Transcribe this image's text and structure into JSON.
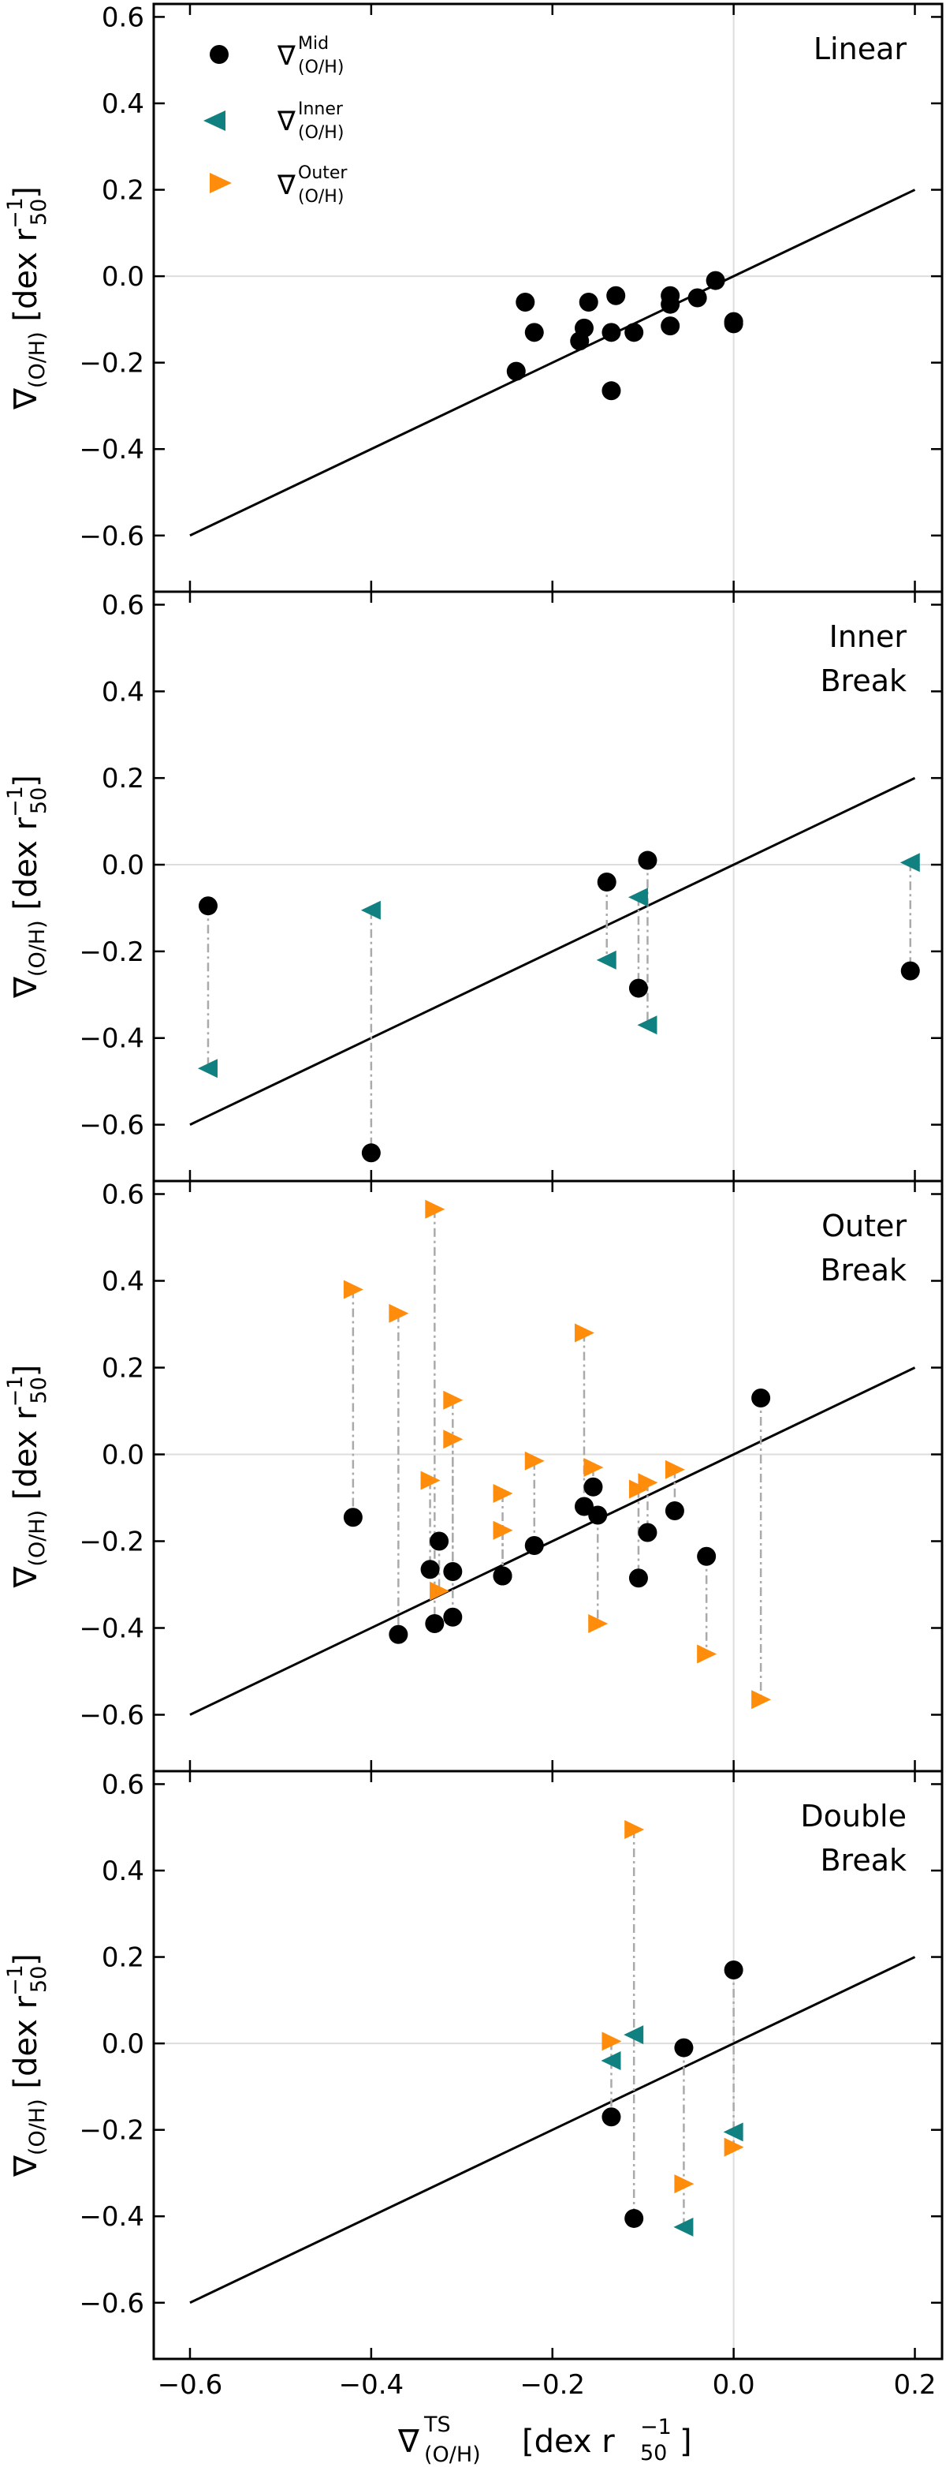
{
  "figure": {
    "xlabel_main": "∇",
    "xlabel_sup": "TS",
    "xlabel_sub": "(O/H)",
    "xlabel_unit": "[dex r",
    "xlabel_unit_sub": "50",
    "xlabel_unit_sup": "−1",
    "xlabel_close": "]",
    "ylabel_main": "∇",
    "ylabel_sub": "(O/H)",
    "ylabel_unit": "[dex r",
    "ylabel_unit_sub": "50",
    "ylabel_unit_sup": "−1",
    "ylabel_close": "]"
  },
  "legend": {
    "symbol": "∇",
    "sub": "(O/H)",
    "entries": [
      {
        "key": "mid",
        "sup": "Mid",
        "marker": "circle",
        "color": "#000000"
      },
      {
        "key": "inner",
        "sup": "Inner",
        "marker": "triangle-left",
        "color": "#118080"
      },
      {
        "key": "outer",
        "sup": "Outer",
        "marker": "triangle-right",
        "color": "#FF8C0A"
      }
    ]
  },
  "colors": {
    "mid": "#000000",
    "inner": "#118080",
    "outer": "#FF8C0A",
    "double_title": "#BBBBBB",
    "zero_line": "#DDDDDD",
    "connector": "#AAAAAA",
    "one_to_one": "#000000"
  },
  "chart_data": [
    {
      "type": "scatter",
      "panel": "Linear",
      "title_lines": [
        "Linear"
      ],
      "title_color": "#000000",
      "xlim": [
        -0.64,
        0.23
      ],
      "ylim": [
        -0.73,
        0.63
      ],
      "xticks": [
        -0.6,
        -0.4,
        -0.2,
        0.0,
        0.2
      ],
      "xticklabels": [
        "−0.6",
        "−0.4",
        "−0.2",
        "0.0",
        "0.2"
      ],
      "yticks": [
        -0.6,
        -0.4,
        -0.2,
        0.0,
        0.2,
        0.4,
        0.6
      ],
      "yticklabels": [
        "−0.6",
        "−0.4",
        "−0.2",
        "0.0",
        "0.2",
        "0.4",
        "0.6"
      ],
      "one_to_one": [
        [
          -0.6,
          -0.6
        ],
        [
          0.2,
          0.2
        ]
      ],
      "mid_points": [
        [
          -0.24,
          -0.22
        ],
        [
          -0.23,
          -0.06
        ],
        [
          -0.22,
          -0.13
        ],
        [
          -0.17,
          -0.15
        ],
        [
          -0.165,
          -0.12
        ],
        [
          -0.16,
          -0.06
        ],
        [
          -0.135,
          -0.13
        ],
        [
          -0.135,
          -0.265
        ],
        [
          -0.13,
          -0.045
        ],
        [
          -0.11,
          -0.13
        ],
        [
          -0.07,
          -0.045
        ],
        [
          -0.07,
          -0.065
        ],
        [
          -0.07,
          -0.115
        ],
        [
          -0.04,
          -0.05
        ],
        [
          -0.02,
          -0.01
        ],
        [
          0.0,
          -0.105
        ],
        [
          0.0,
          -0.11
        ]
      ],
      "pairs": []
    },
    {
      "type": "scatter",
      "panel": "Inner Break",
      "title_lines": [
        "Inner",
        "Break"
      ],
      "title_color": "#118080",
      "xlim": [
        -0.64,
        0.23
      ],
      "ylim": [
        -0.73,
        0.63
      ],
      "xticks": [
        -0.6,
        -0.4,
        -0.2,
        0.0,
        0.2
      ],
      "xticklabels": [
        "−0.6",
        "−0.4",
        "−0.2",
        "0.0",
        "0.2"
      ],
      "yticks": [
        -0.6,
        -0.4,
        -0.2,
        0.0,
        0.2,
        0.4,
        0.6
      ],
      "yticklabels": [
        "−0.6",
        "−0.4",
        "−0.2",
        "0.0",
        "0.2",
        "0.4",
        "0.6"
      ],
      "one_to_one": [
        [
          -0.6,
          -0.6
        ],
        [
          0.2,
          0.2
        ]
      ],
      "mid_points": [],
      "pairs": [
        {
          "x": -0.58,
          "mid": -0.095,
          "inner": -0.47
        },
        {
          "x": -0.4,
          "mid": -0.665,
          "inner": -0.105
        },
        {
          "x": -0.14,
          "mid": -0.04,
          "inner": -0.22
        },
        {
          "x": -0.105,
          "mid": -0.285,
          "inner": -0.075
        },
        {
          "x": -0.095,
          "mid": 0.01,
          "inner": -0.37
        },
        {
          "x": 0.195,
          "mid": -0.245,
          "inner": 0.005
        }
      ]
    },
    {
      "type": "scatter",
      "panel": "Outer Break",
      "title_lines": [
        "Outer",
        "Break"
      ],
      "title_color": "#FF8C0A",
      "xlim": [
        -0.64,
        0.23
      ],
      "ylim": [
        -0.73,
        0.63
      ],
      "xticks": [
        -0.6,
        -0.4,
        -0.2,
        0.0,
        0.2
      ],
      "xticklabels": [
        "−0.6",
        "−0.4",
        "−0.2",
        "0.0",
        "0.2"
      ],
      "yticks": [
        -0.6,
        -0.4,
        -0.2,
        0.0,
        0.2,
        0.4,
        0.6
      ],
      "yticklabels": [
        "−0.6",
        "−0.4",
        "−0.2",
        "0.0",
        "0.2",
        "0.4",
        "0.6"
      ],
      "one_to_one": [
        [
          -0.6,
          -0.6
        ],
        [
          0.2,
          0.2
        ]
      ],
      "mid_points": [],
      "pairs": [
        {
          "x": -0.42,
          "mid": -0.145,
          "outer": 0.38
        },
        {
          "x": -0.37,
          "mid": -0.415,
          "outer": 0.325
        },
        {
          "x": -0.335,
          "mid": -0.265,
          "outer": -0.06
        },
        {
          "x": -0.33,
          "mid": -0.39,
          "outer": 0.565
        },
        {
          "x": -0.325,
          "mid": -0.2,
          "outer": -0.315
        },
        {
          "x": -0.31,
          "mid": -0.375,
          "outer": 0.125
        },
        {
          "x": -0.31,
          "mid": -0.27,
          "outer": 0.035
        },
        {
          "x": -0.255,
          "mid": -0.28,
          "outer": -0.09
        },
        {
          "x": -0.255,
          "mid": -0.28,
          "outer": -0.175
        },
        {
          "x": -0.22,
          "mid": -0.21,
          "outer": -0.015
        },
        {
          "x": -0.165,
          "mid": -0.12,
          "outer": 0.28
        },
        {
          "x": -0.155,
          "mid": -0.075,
          "outer": -0.03
        },
        {
          "x": -0.15,
          "mid": -0.14,
          "outer": -0.39
        },
        {
          "x": -0.105,
          "mid": -0.285,
          "outer": -0.08
        },
        {
          "x": -0.095,
          "mid": -0.18,
          "outer": -0.065
        },
        {
          "x": -0.065,
          "mid": -0.13,
          "outer": -0.035
        },
        {
          "x": -0.03,
          "mid": -0.235,
          "outer": -0.46
        },
        {
          "x": 0.03,
          "mid": 0.13,
          "outer": -0.565
        }
      ]
    },
    {
      "type": "scatter",
      "panel": "Double Break",
      "title_lines": [
        "Double",
        "Break"
      ],
      "title_color": "#BBBBBB",
      "xlim": [
        -0.64,
        0.23
      ],
      "ylim": [
        -0.73,
        0.63
      ],
      "xticks": [
        -0.6,
        -0.4,
        -0.2,
        0.0,
        0.2
      ],
      "xticklabels": [
        "−0.6",
        "−0.4",
        "−0.2",
        "0.0",
        "0.2"
      ],
      "yticks": [
        -0.6,
        -0.4,
        -0.2,
        0.0,
        0.2,
        0.4,
        0.6
      ],
      "yticklabels": [
        "−0.6",
        "−0.4",
        "−0.2",
        "0.0",
        "0.2",
        "0.4",
        "0.6"
      ],
      "one_to_one": [
        [
          -0.6,
          -0.6
        ],
        [
          0.2,
          0.2
        ]
      ],
      "mid_points": [],
      "pairs": [
        {
          "x": -0.135,
          "mid": -0.17,
          "inner": -0.04,
          "outer": 0.005
        },
        {
          "x": -0.11,
          "mid": -0.405,
          "inner": 0.02,
          "outer": 0.495
        },
        {
          "x": -0.055,
          "mid": -0.01,
          "inner": -0.425,
          "outer": -0.325
        },
        {
          "x": 0.0,
          "mid": 0.17,
          "inner": -0.205,
          "outer": -0.24
        }
      ]
    }
  ]
}
